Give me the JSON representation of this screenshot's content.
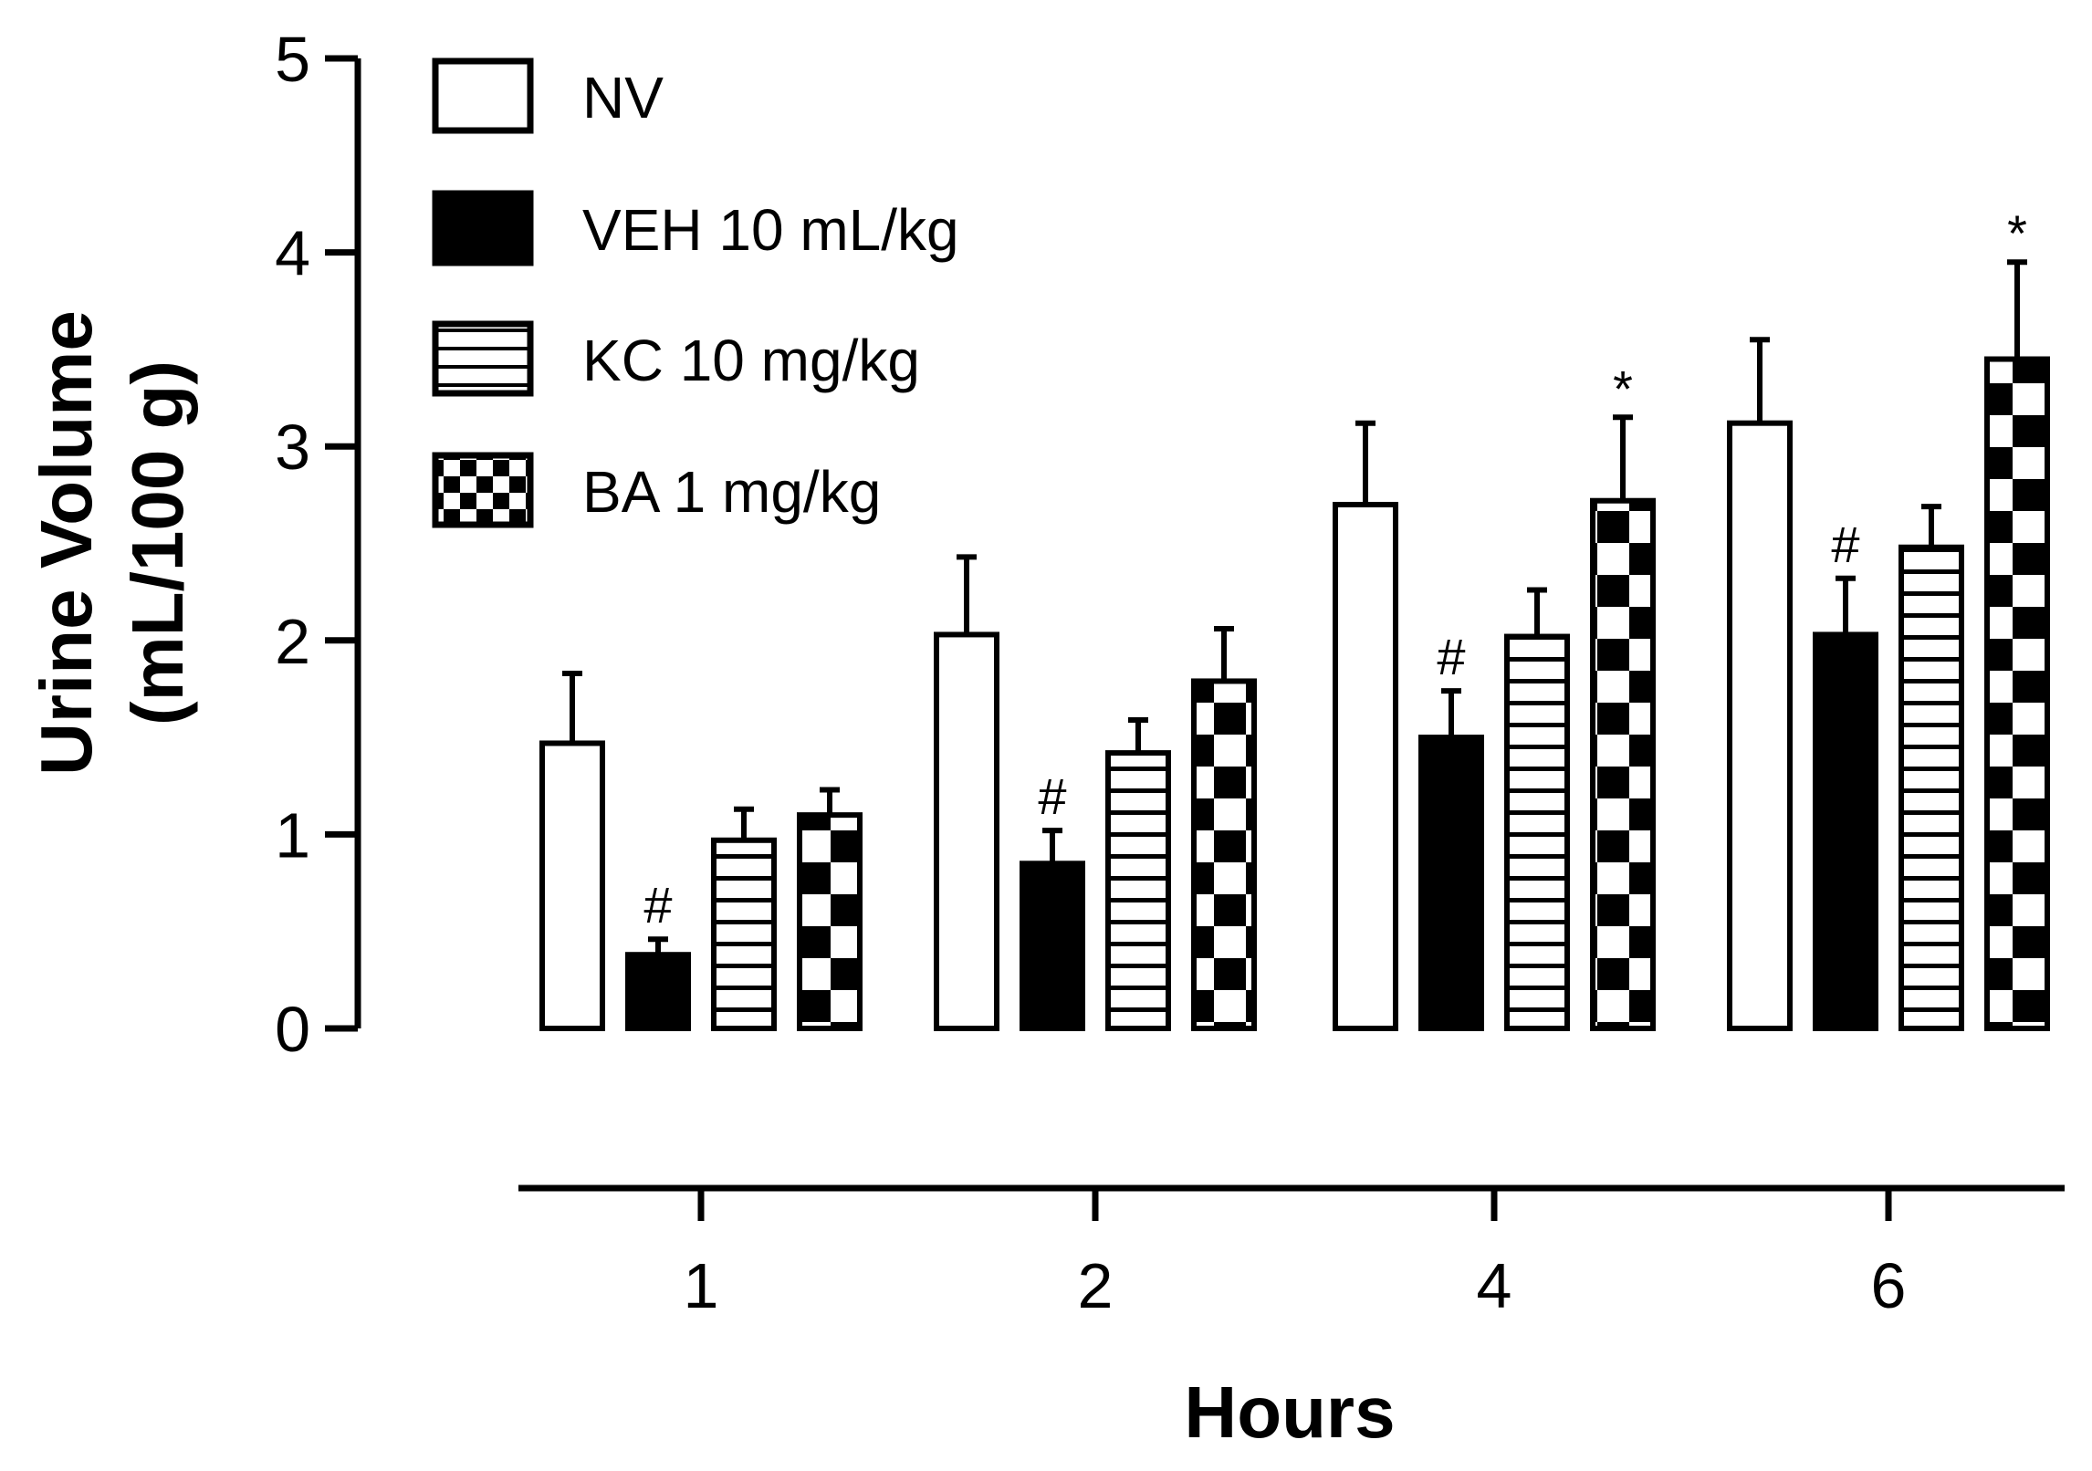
{
  "chart_data": {
    "type": "bar",
    "title": "",
    "xlabel": "Hours",
    "ylabel_line1": "Urine Volume",
    "ylabel_line2": "(mL/100 g)",
    "ylim": [
      0,
      5
    ],
    "yticks": [
      "0",
      "1",
      "2",
      "3",
      "4",
      "5"
    ],
    "categories": [
      "1",
      "2",
      "4",
      "6"
    ],
    "series": [
      {
        "name": "NV",
        "pattern": "white",
        "values": [
          1.47,
          2.03,
          2.7,
          3.12
        ],
        "errors": [
          0.36,
          0.4,
          0.42,
          0.43
        ],
        "marks": [
          "",
          "",
          "",
          ""
        ]
      },
      {
        "name": "VEH 10 mL/kg",
        "pattern": "black",
        "values": [
          0.38,
          0.85,
          1.5,
          2.03
        ],
        "errors": [
          0.08,
          0.17,
          0.24,
          0.29
        ],
        "marks": [
          "#",
          "#",
          "#",
          "#"
        ]
      },
      {
        "name": "KC 10 mg/kg",
        "pattern": "stripes",
        "values": [
          0.97,
          1.42,
          2.02,
          2.48
        ],
        "errors": [
          0.16,
          0.17,
          0.24,
          0.21
        ],
        "marks": [
          "",
          "",
          "",
          ""
        ]
      },
      {
        "name": "BA 1 mg/kg",
        "pattern": "checker",
        "values": [
          1.1,
          1.79,
          2.72,
          3.45
        ],
        "errors": [
          0.13,
          0.27,
          0.43,
          0.5
        ],
        "marks": [
          "",
          "",
          "*",
          "*"
        ]
      }
    ],
    "legend_position": "top-left"
  }
}
